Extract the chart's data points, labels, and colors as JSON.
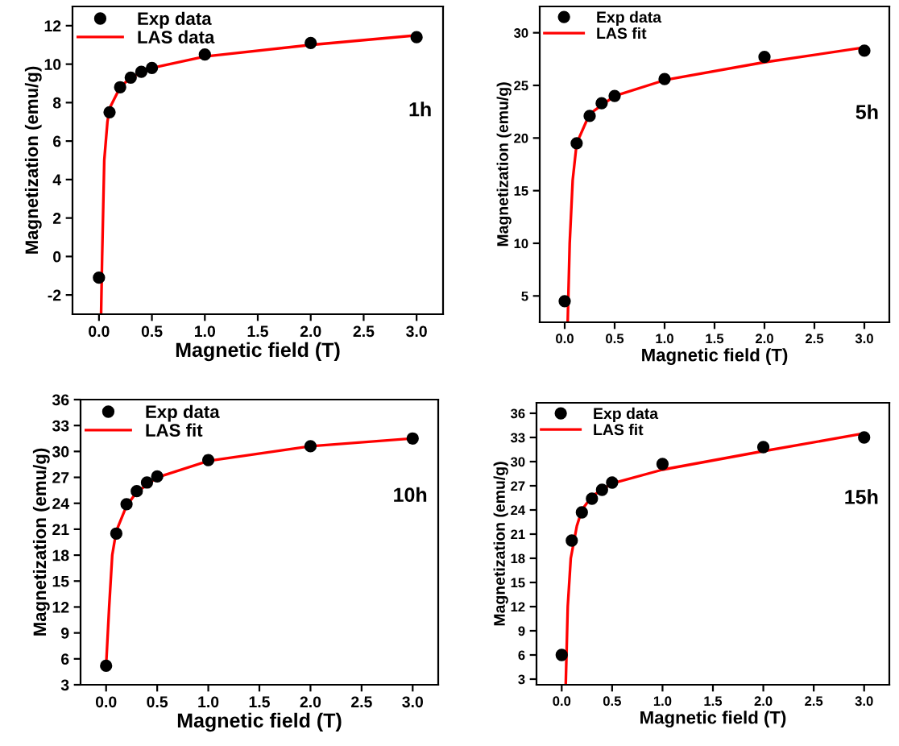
{
  "chart_data": [
    {
      "type": "scatter",
      "xlabel": "Magnetic field (T)",
      "ylabel": "Magnetization (emu/g)",
      "annotations": [
        "1h"
      ],
      "legend": "top left",
      "grid": false,
      "xlim": [
        -0.25,
        3.25
      ],
      "xticks": [
        {
          "value": 0,
          "label": "0.0"
        },
        0.5,
        {
          "value": 1,
          "label": "1.0"
        },
        1.5,
        {
          "value": 2,
          "label": "2.0"
        },
        2.5,
        {
          "value": 3,
          "label": "3.0"
        }
      ],
      "ylim": [
        -3,
        13
      ],
      "yticks": [
        -2,
        0,
        2,
        4,
        6,
        8,
        10,
        12
      ],
      "series": [
        {
          "name": "Exp data",
          "marker": "circle",
          "color": "#000000",
          "x": [
            0,
            0.1,
            0.2,
            0.3,
            0.4,
            0.5,
            1,
            2,
            3
          ],
          "values": [
            -1.1,
            7.5,
            8.8,
            9.3,
            9.6,
            9.8,
            10.5,
            11.1,
            11.4
          ]
        },
        {
          "name": "LAS data",
          "type": "line",
          "color": "#ff0000",
          "x": [
            0.02,
            0.03,
            0.05,
            0.08,
            0.1,
            0.2,
            0.3,
            0.5,
            1,
            2,
            3
          ],
          "values": [
            -3,
            0,
            5,
            7,
            7.7,
            8.8,
            9.3,
            9.8,
            10.4,
            11.0,
            11.5
          ]
        }
      ]
    },
    {
      "type": "scatter",
      "xlabel": "Magnetic field (T)",
      "ylabel": "Magnetization (emu/g)",
      "annotations": [
        "5h"
      ],
      "legend": "top left",
      "grid": false,
      "xlim": [
        -0.25,
        3.25
      ],
      "xticks": [
        {
          "value": 0,
          "label": "0.0"
        },
        0.5,
        {
          "value": 1,
          "label": "1.0"
        },
        1.5,
        {
          "value": 2,
          "label": "2.0"
        },
        2.5,
        {
          "value": 3,
          "label": "3.0"
        }
      ],
      "ylim": [
        2.5,
        32.5
      ],
      "yticks": [
        5,
        10,
        15,
        20,
        25,
        30
      ],
      "series": [
        {
          "name": "Exp data",
          "marker": "circle",
          "color": "#000000",
          "x": [
            0,
            0.12,
            0.25,
            0.37,
            0.5,
            1,
            2,
            3
          ],
          "values": [
            4.5,
            19.5,
            22.1,
            23.3,
            24.0,
            25.6,
            27.7,
            28.3
          ]
        },
        {
          "name": "LAS fit",
          "type": "line",
          "color": "#ff0000",
          "x": [
            0.03,
            0.05,
            0.08,
            0.12,
            0.25,
            0.5,
            1,
            2,
            3
          ],
          "values": [
            2.5,
            10,
            16,
            19.5,
            22.3,
            24,
            25.5,
            27.2,
            28.6
          ]
        }
      ]
    },
    {
      "type": "scatter",
      "xlabel": "Magnetic field (T)",
      "ylabel": "Magnetization (emu/g)",
      "annotations": [
        "10h"
      ],
      "legend": "top left",
      "grid": false,
      "xlim": [
        -0.25,
        3.25
      ],
      "xticks": [
        {
          "value": 0,
          "label": "0.0"
        },
        0.5,
        {
          "value": 1,
          "label": "1.0"
        },
        1.5,
        {
          "value": 2,
          "label": "2.0"
        },
        2.5,
        {
          "value": 3,
          "label": "3.0"
        }
      ],
      "ylim": [
        3,
        36
      ],
      "yticks": [
        3,
        6,
        9,
        12,
        15,
        18,
        21,
        24,
        27,
        30,
        33,
        36
      ],
      "series": [
        {
          "name": "Exp data",
          "marker": "circle",
          "color": "#000000",
          "x": [
            0,
            0.1,
            0.2,
            0.3,
            0.4,
            0.5,
            1,
            2,
            3
          ],
          "values": [
            5.2,
            20.5,
            23.9,
            25.4,
            26.4,
            27.1,
            29.0,
            30.6,
            31.5
          ]
        },
        {
          "name": "LAS fit",
          "type": "line",
          "color": "#ff0000",
          "x": [
            0,
            0.03,
            0.06,
            0.1,
            0.2,
            0.3,
            0.5,
            1,
            2,
            3
          ],
          "values": [
            5.2,
            12,
            18,
            20.8,
            23.7,
            25.3,
            27.0,
            28.9,
            30.6,
            31.5
          ]
        }
      ]
    },
    {
      "type": "scatter",
      "xlabel": "Magnetic field (T)",
      "ylabel": "Magnetization (emu/g)",
      "annotations": [
        "15h"
      ],
      "legend": "top left",
      "grid": false,
      "xlim": [
        -0.25,
        3.25
      ],
      "xticks": [
        {
          "value": 0,
          "label": "0.0"
        },
        0.5,
        {
          "value": 1,
          "label": "1.0"
        },
        1.5,
        {
          "value": 2,
          "label": "2.0"
        },
        2.5,
        {
          "value": 3,
          "label": "3.0"
        }
      ],
      "ylim": [
        2.3,
        37.3
      ],
      "yticks": [
        3,
        6,
        9,
        12,
        15,
        18,
        21,
        24,
        27,
        30,
        33,
        36
      ],
      "series": [
        {
          "name": "Exp data",
          "marker": "circle",
          "color": "#000000",
          "x": [
            0,
            0.1,
            0.2,
            0.3,
            0.4,
            0.5,
            1,
            2,
            3
          ],
          "values": [
            6.0,
            20.2,
            23.7,
            25.4,
            26.5,
            27.4,
            29.7,
            31.8,
            33.0
          ]
        },
        {
          "name": "LAS fit",
          "type": "line",
          "color": "#ff0000",
          "x": [
            0.04,
            0.06,
            0.09,
            0.15,
            0.2,
            0.3,
            0.5,
            1,
            2,
            3
          ],
          "values": [
            2.3,
            12,
            18,
            22,
            24,
            25.7,
            27.3,
            29,
            31.3,
            33.5
          ]
        }
      ]
    }
  ]
}
